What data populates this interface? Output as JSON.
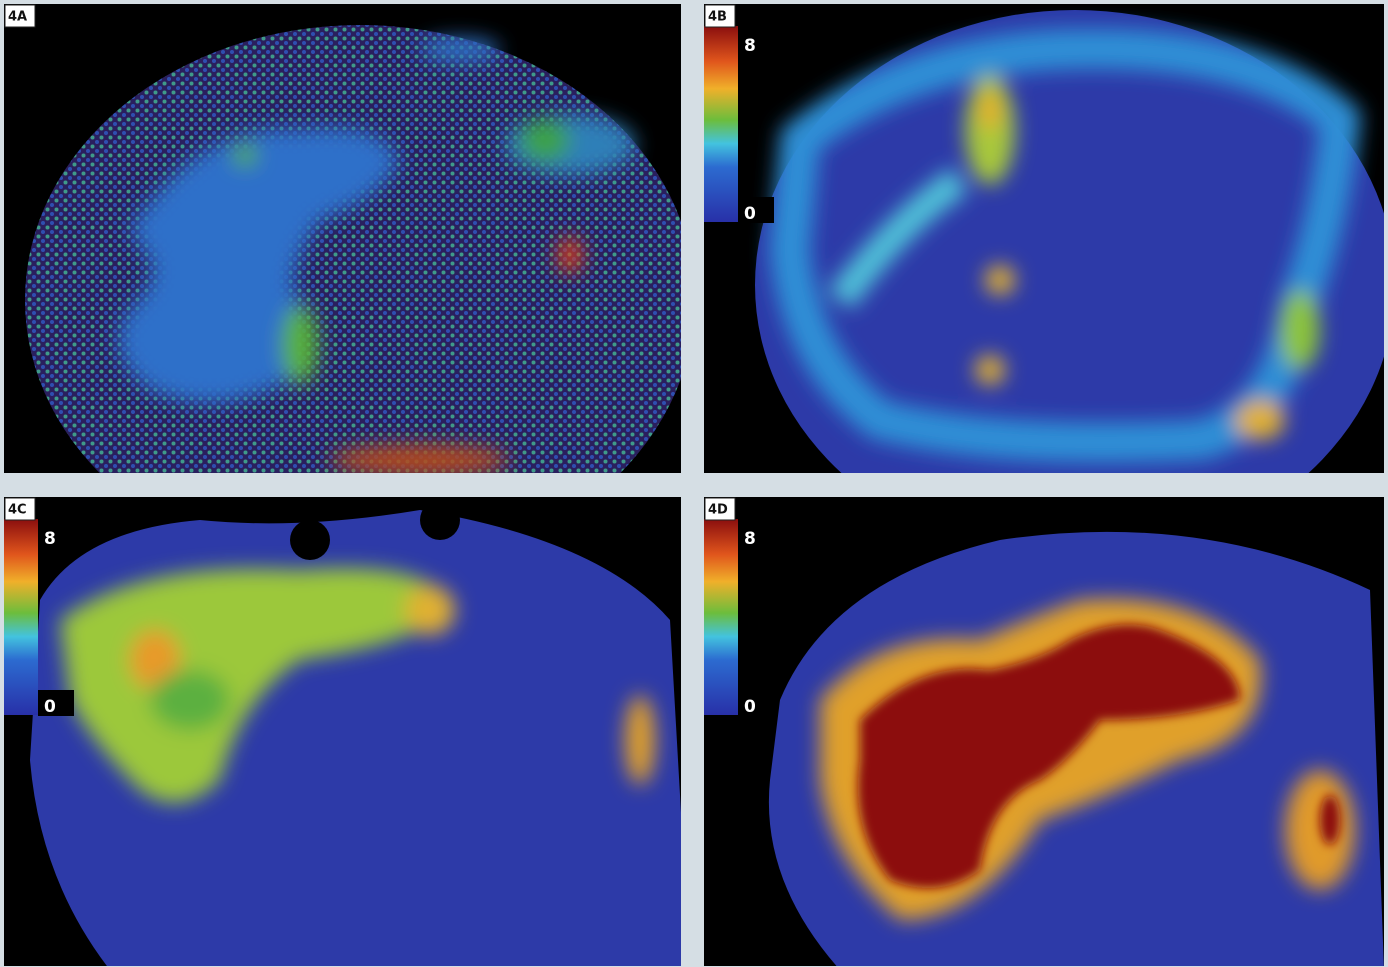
{
  "panels": [
    {
      "label": "4A"
    },
    {
      "label": "4B",
      "scale_max": 8,
      "scale_min": 0
    },
    {
      "label": "4C",
      "scale_max": 8,
      "scale_min": 0
    },
    {
      "label": "4D",
      "scale_max": 8,
      "scale_min": 0
    }
  ]
}
